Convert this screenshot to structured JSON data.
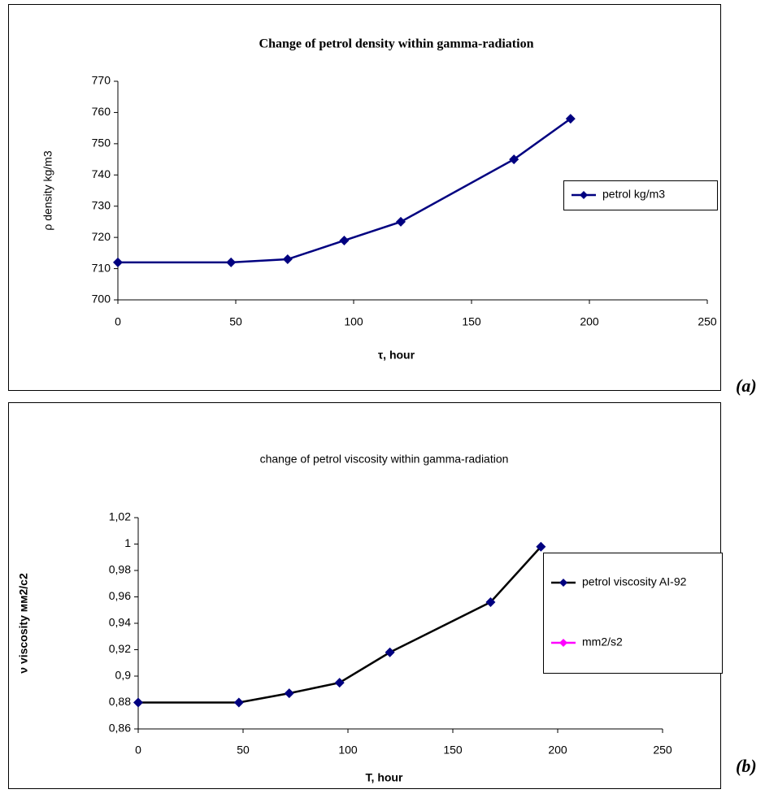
{
  "chart_data": [
    {
      "type": "line",
      "panel_label": "(a)",
      "title": "Change of petrol density within gamma-radiation",
      "y_label": "ρ  density kg/m3",
      "x_label": "τ, hour",
      "x": [
        0,
        48,
        72,
        96,
        120,
        168,
        192
      ],
      "series": [
        {
          "name": "petrol kg/m3",
          "color": "#000080",
          "marker_color": "#000080",
          "values": [
            712,
            712,
            713,
            719,
            725,
            745,
            758
          ]
        }
      ],
      "xlim": [
        0,
        250
      ],
      "xticks": [
        0,
        50,
        100,
        150,
        200,
        250
      ],
      "ylim": [
        700,
        770
      ],
      "yticks": [
        700,
        710,
        720,
        730,
        740,
        750,
        760,
        770
      ],
      "grid": false,
      "legend": "right"
    },
    {
      "type": "line",
      "panel_label": "(b)",
      "title": "change of petrol viscosity within gamma-radiation",
      "y_label": "ν  viscosity мм2/c2",
      "x_label": "T, hour",
      "x": [
        0,
        48,
        72,
        96,
        120,
        168,
        192
      ],
      "series": [
        {
          "name": "petrol viscosity AI-92",
          "color": "#000000",
          "marker_color": "#000080",
          "values": [
            0.88,
            0.88,
            0.887,
            0.895,
            0.918,
            0.956,
            0.998
          ]
        },
        {
          "name": "mm2/s2",
          "color": "#ff00ff",
          "marker_color": "#ff00ff",
          "values": [
            null,
            null,
            null,
            null,
            null,
            null,
            null
          ]
        }
      ],
      "xlim": [
        0,
        250
      ],
      "xticks": [
        0,
        50,
        100,
        150,
        200,
        250
      ],
      "ylim": [
        0.86,
        1.02
      ],
      "yticks": [
        {
          "value": 0.86,
          "label": "0,86"
        },
        {
          "value": 0.88,
          "label": "0,88"
        },
        {
          "value": 0.9,
          "label": "0,9"
        },
        {
          "value": 0.92,
          "label": "0,92"
        },
        {
          "value": 0.94,
          "label": "0,94"
        },
        {
          "value": 0.96,
          "label": "0,96"
        },
        {
          "value": 0.98,
          "label": "0,98"
        },
        1,
        {
          "value": 1.02,
          "label": "1,02"
        }
      ],
      "grid": false,
      "legend": "right"
    }
  ]
}
